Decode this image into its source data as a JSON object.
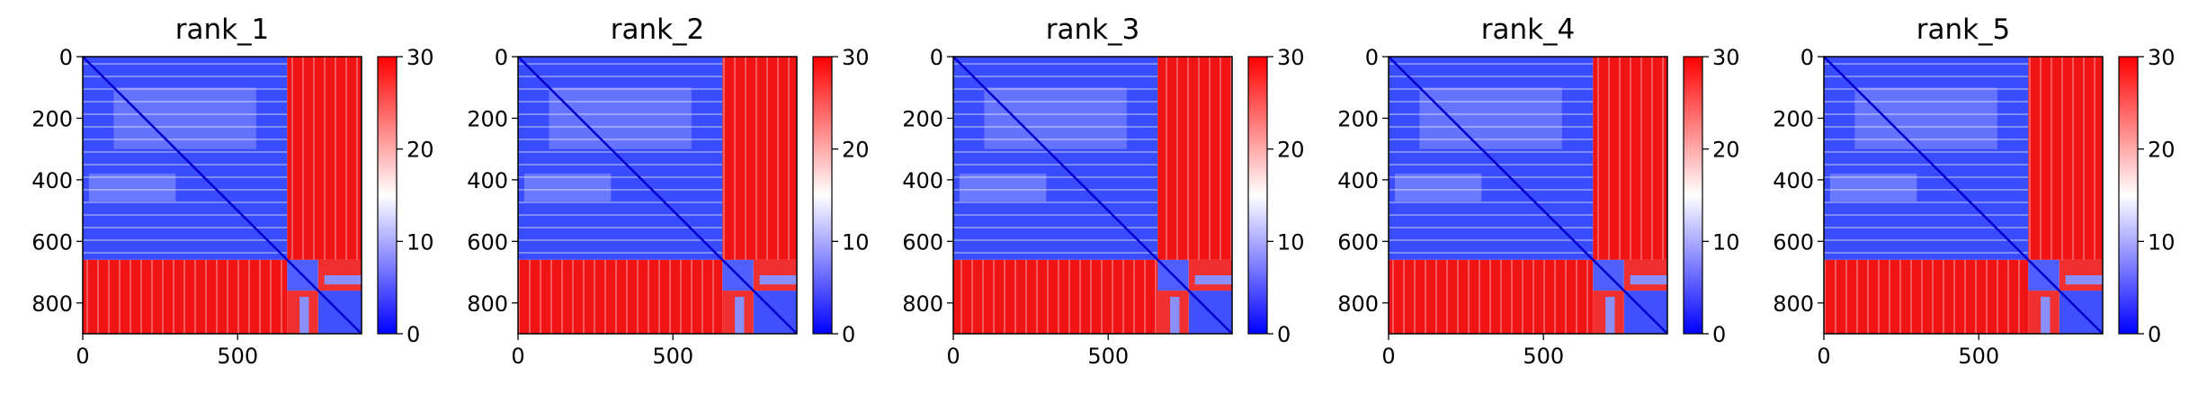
{
  "chart_data": [
    {
      "type": "heatmap",
      "title": "rank_1",
      "x_ticks": [
        0,
        500
      ],
      "y_ticks": [
        0,
        200,
        400,
        600,
        800
      ],
      "xlim": [
        0,
        900
      ],
      "ylim": [
        900,
        0
      ],
      "matrix_size": 900,
      "block_split": 660,
      "sub_split": 760,
      "colorbar": {
        "min": 0,
        "max": 30,
        "ticks": [
          0,
          10,
          20,
          30
        ],
        "colormap": "bwr"
      }
    },
    {
      "type": "heatmap",
      "title": "rank_2",
      "x_ticks": [
        0,
        500
      ],
      "y_ticks": [
        0,
        200,
        400,
        600,
        800
      ],
      "xlim": [
        0,
        900
      ],
      "ylim": [
        900,
        0
      ],
      "matrix_size": 900,
      "block_split": 660,
      "sub_split": 760,
      "colorbar": {
        "min": 0,
        "max": 30,
        "ticks": [
          0,
          10,
          20,
          30
        ],
        "colormap": "bwr"
      }
    },
    {
      "type": "heatmap",
      "title": "rank_3",
      "x_ticks": [
        0,
        500
      ],
      "y_ticks": [
        0,
        200,
        400,
        600,
        800
      ],
      "xlim": [
        0,
        900
      ],
      "ylim": [
        900,
        0
      ],
      "matrix_size": 900,
      "block_split": 660,
      "sub_split": 760,
      "colorbar": {
        "min": 0,
        "max": 30,
        "ticks": [
          0,
          10,
          20,
          30
        ],
        "colormap": "bwr"
      }
    },
    {
      "type": "heatmap",
      "title": "rank_4",
      "x_ticks": [
        0,
        500
      ],
      "y_ticks": [
        0,
        200,
        400,
        600,
        800
      ],
      "xlim": [
        0,
        900
      ],
      "ylim": [
        900,
        0
      ],
      "matrix_size": 900,
      "block_split": 660,
      "sub_split": 760,
      "colorbar": {
        "min": 0,
        "max": 30,
        "ticks": [
          0,
          10,
          20,
          30
        ],
        "colormap": "bwr"
      }
    },
    {
      "type": "heatmap",
      "title": "rank_5",
      "x_ticks": [
        0,
        500
      ],
      "y_ticks": [
        0,
        200,
        400,
        600,
        800
      ],
      "xlim": [
        0,
        900
      ],
      "ylim": [
        900,
        0
      ],
      "matrix_size": 900,
      "block_split": 660,
      "sub_split": 760,
      "colorbar": {
        "min": 0,
        "max": 30,
        "ticks": [
          0,
          10,
          20,
          30
        ],
        "colormap": "bwr"
      }
    }
  ],
  "colors": {
    "low": "#0000ff",
    "mid": "#ffffff",
    "high": "#ff0000"
  }
}
